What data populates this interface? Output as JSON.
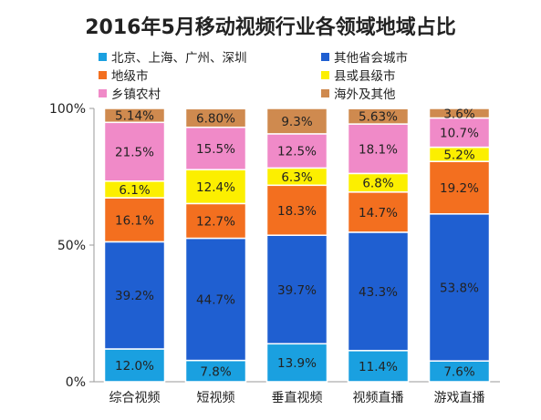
{
  "chart_data": {
    "type": "bar",
    "stacked": true,
    "title": "2016年5月移动视频行业各领域地域占比",
    "categories": [
      "综合视频",
      "短视频",
      "垂直视频",
      "视频直播",
      "游戏直播"
    ],
    "yticks": [
      "0%",
      "50%",
      "100%"
    ],
    "ylim": [
      0,
      100
    ],
    "legend_position": "top",
    "series": [
      {
        "name": "北京、上海、广州、深圳",
        "color": "#1aa0e0",
        "values": [
          12.0,
          7.8,
          13.9,
          11.4,
          7.6
        ],
        "labels": [
          "12.0%",
          "7.8%",
          "13.9%",
          "11.4%",
          "7.6%"
        ]
      },
      {
        "name": "其他省会城市",
        "color": "#1f5fd1",
        "values": [
          39.2,
          44.7,
          39.7,
          43.3,
          53.8
        ],
        "labels": [
          "39.2%",
          "44.7%",
          "39.7%",
          "43.3%",
          "53.8%"
        ]
      },
      {
        "name": "地级市",
        "color": "#f36f1f",
        "values": [
          16.1,
          12.7,
          18.3,
          14.7,
          19.2
        ],
        "labels": [
          "16.1%",
          "12.7%",
          "18.3%",
          "14.7%",
          "19.2%"
        ]
      },
      {
        "name": "县或县级市",
        "color": "#fcef00",
        "values": [
          6.1,
          12.4,
          6.3,
          6.8,
          5.2
        ],
        "labels": [
          "6.1%",
          "12.4%",
          "6.3%",
          "6.8%",
          "5.2%"
        ]
      },
      {
        "name": "乡镇农村",
        "color": "#f08ac8",
        "values": [
          21.5,
          15.5,
          12.5,
          18.1,
          10.7
        ],
        "labels": [
          "21.5%",
          "15.5%",
          "12.5%",
          "18.1%",
          "10.7%"
        ]
      },
      {
        "name": "海外及其他",
        "color": "#cf8a4f",
        "values": [
          5.14,
          6.8,
          9.3,
          5.63,
          3.6
        ],
        "labels": [
          "5.14%",
          "6.80%",
          "9.3%",
          "5.63%",
          "3.6%"
        ]
      }
    ]
  }
}
